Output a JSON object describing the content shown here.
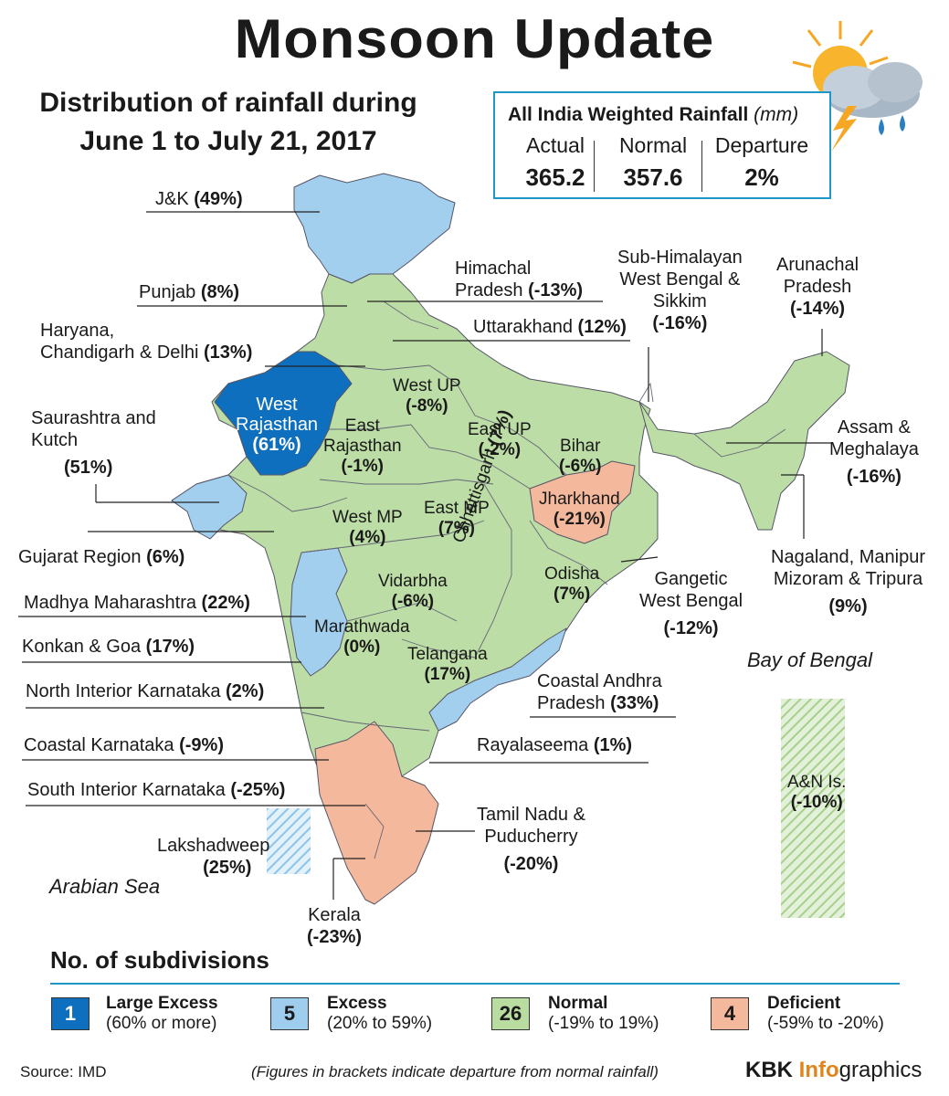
{
  "header": {
    "title": "Monsoon Update",
    "subtitle_line1": "Distribution of rainfall during",
    "subtitle_line2": "June 1 to July 21, 2017"
  },
  "summary": {
    "heading": "All India Weighted Rainfall",
    "unit": "(mm)",
    "actual_label": "Actual",
    "actual_value": "365.2",
    "normal_label": "Normal",
    "normal_value": "357.6",
    "departure_label": "Departure",
    "departure_value": "2%"
  },
  "regions": {
    "jk": {
      "name": "J&K",
      "value": "(49%)"
    },
    "himachal": {
      "name_1": "Himachal",
      "name_2": "Pradesh",
      "value": "(-13%)"
    },
    "subhimalayan": {
      "name_1": "Sub-Himalayan",
      "name_2": "West Bengal &",
      "name_3": "Sikkim",
      "value": "(-16%)"
    },
    "arunachal": {
      "name_1": "Arunachal",
      "name_2": "Pradesh",
      "value": "(-14%)"
    },
    "punjab": {
      "name": "Punjab",
      "value": "(8%)"
    },
    "uttarakhand": {
      "name": "Uttarakhand",
      "value": "(12%)"
    },
    "haryana": {
      "name_1": "Haryana,",
      "name_2": "Chandigarh & Delhi",
      "value": "(13%)"
    },
    "saurashtra": {
      "name_1": "Saurashtra and",
      "name_2": "Kutch",
      "value": "(51%)"
    },
    "assam": {
      "name_1": "Assam &",
      "name_2": "Meghalaya",
      "value": "(-16%)"
    },
    "west_rajasthan": {
      "name_1": "West",
      "name_2": "Rajasthan",
      "value": "(61%)"
    },
    "east_rajasthan": {
      "name_1": "East",
      "name_2": "Rajasthan",
      "value": "(-1%)"
    },
    "west_up": {
      "name": "West UP",
      "value": "(-8%)"
    },
    "east_up": {
      "name": "East UP",
      "value": "(-2%)"
    },
    "bihar": {
      "name": "Bihar",
      "value": "(-6%)"
    },
    "jharkhand": {
      "name": "Jharkhand",
      "value": "(-21%)"
    },
    "west_mp": {
      "name": "West MP",
      "value": "(4%)"
    },
    "east_mp": {
      "name": "East MP",
      "value": "(7%)"
    },
    "chhattisgarh": {
      "name": "Chhattisgarh",
      "value": "(7%)"
    },
    "odisha": {
      "name": "Odisha",
      "value": "(7%)"
    },
    "vidarbha": {
      "name": "Vidarbha",
      "value": "(-6%)"
    },
    "marathwada": {
      "name": "Marathwada",
      "value": "(0%)"
    },
    "telangana": {
      "name": "Telangana",
      "value": "(17%)"
    },
    "gujarat": {
      "name": "Gujarat Region",
      "value": "(6%)"
    },
    "madhya_maharashtra": {
      "name": "Madhya Maharashtra",
      "value": "(22%)"
    },
    "konkan": {
      "name": "Konkan & Goa",
      "value": "(17%)"
    },
    "nik": {
      "name": "North Interior Karnataka",
      "value": "(2%)"
    },
    "coastal_karnataka": {
      "name": "Coastal Karnataka",
      "value": "(-9%)"
    },
    "sik": {
      "name": "South Interior Karnataka",
      "value": "(-25%)"
    },
    "lakshadweep": {
      "name": "Lakshadweep",
      "value": "(25%)"
    },
    "kerala": {
      "name": "Kerala",
      "value": "(-23%)"
    },
    "gangetic_wb": {
      "name_1": "Gangetic",
      "name_2": "West Bengal",
      "value": "(-12%)"
    },
    "nmmt": {
      "name_1": "Nagaland, Manipur",
      "name_2": "Mizoram & Tripura",
      "value": "(9%)"
    },
    "coastal_ap": {
      "name_1": "Coastal Andhra",
      "name_2": "Pradesh",
      "value": "(33%)"
    },
    "rayalaseema": {
      "name": "Rayalaseema",
      "value": "(1%)"
    },
    "tamil_nadu": {
      "name_1": "Tamil Nadu &",
      "name_2": "Puducherry",
      "value": "(-20%)"
    },
    "an_islands": {
      "name": "A&N Is.",
      "value": "(-10%)"
    }
  },
  "seas": {
    "arabian": "Arabian Sea",
    "bengal": "Bay of Bengal"
  },
  "legend": {
    "title": "No. of subdivisions",
    "items": [
      {
        "count": "1",
        "name": "Large Excess",
        "range": "(60% or more)",
        "color": "#0d6fbe"
      },
      {
        "count": "5",
        "name": "Excess",
        "range": "(20% to 59%)",
        "color": "#9fcdee"
      },
      {
        "count": "26",
        "name": "Normal",
        "range": "(-19% to 19%)",
        "color": "#b9dca1"
      },
      {
        "count": "4",
        "name": "Deficient",
        "range": "(-59% to -20%)",
        "color": "#f4b89c"
      }
    ]
  },
  "footer": {
    "source": "Source: IMD",
    "note": "(Figures in brackets indicate departure from normal rainfall)",
    "brand_1": "KBK",
    "brand_2": "Info",
    "brand_3": "graphics"
  },
  "colors": {
    "large_excess": "#0d6fbe",
    "excess": "#a3cfee",
    "normal": "#bcdda5",
    "deficient": "#f4b89c",
    "accent": "#1e96c8"
  }
}
